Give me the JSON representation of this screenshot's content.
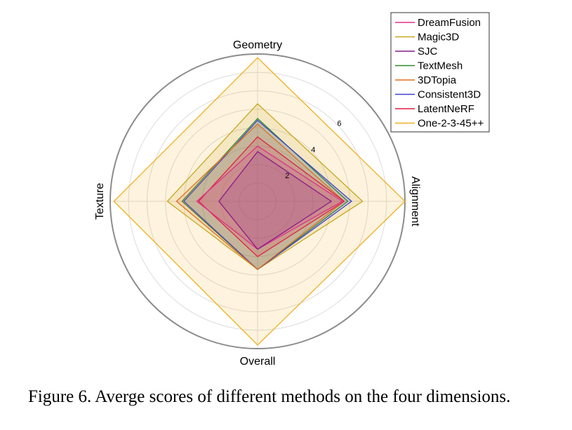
{
  "caption": "Figure 6.  Averge scores of different methods on the four dimensions.",
  "chart_data": {
    "type": "radar",
    "axes": [
      "Geometry",
      "Alignment",
      "Overall",
      "Texture"
    ],
    "rlim": [
      0,
      8
    ],
    "ticks": [
      2,
      4,
      6
    ],
    "grid": true,
    "legend_position": "top-right",
    "series": [
      {
        "name": "DreamFusion",
        "color": "#e0308a",
        "values": [
          3.0,
          4.6,
          2.6,
          3.3
        ]
      },
      {
        "name": "Magic3D",
        "color": "#c8a820",
        "values": [
          5.3,
          5.7,
          3.7,
          4.9
        ]
      },
      {
        "name": "SJC",
        "color": "#8a1a8a",
        "values": [
          2.7,
          4.0,
          2.6,
          2.1
        ]
      },
      {
        "name": "TextMesh",
        "color": "#2e8b2e",
        "values": [
          4.5,
          4.9,
          3.7,
          4.1
        ]
      },
      {
        "name": "3DTopia",
        "color": "#e07020",
        "values": [
          4.2,
          4.7,
          3.7,
          4.4
        ]
      },
      {
        "name": "Consistent3D",
        "color": "#4040d0",
        "values": [
          4.4,
          5.1,
          3.7,
          4.0
        ]
      },
      {
        "name": "LatentNeRF",
        "color": "#e02040",
        "values": [
          3.5,
          4.7,
          3.0,
          3.2
        ]
      },
      {
        "name": "One-2-3-45++",
        "color": "#f0b020",
        "values": [
          7.8,
          8.0,
          7.8,
          7.8
        ]
      }
    ]
  }
}
